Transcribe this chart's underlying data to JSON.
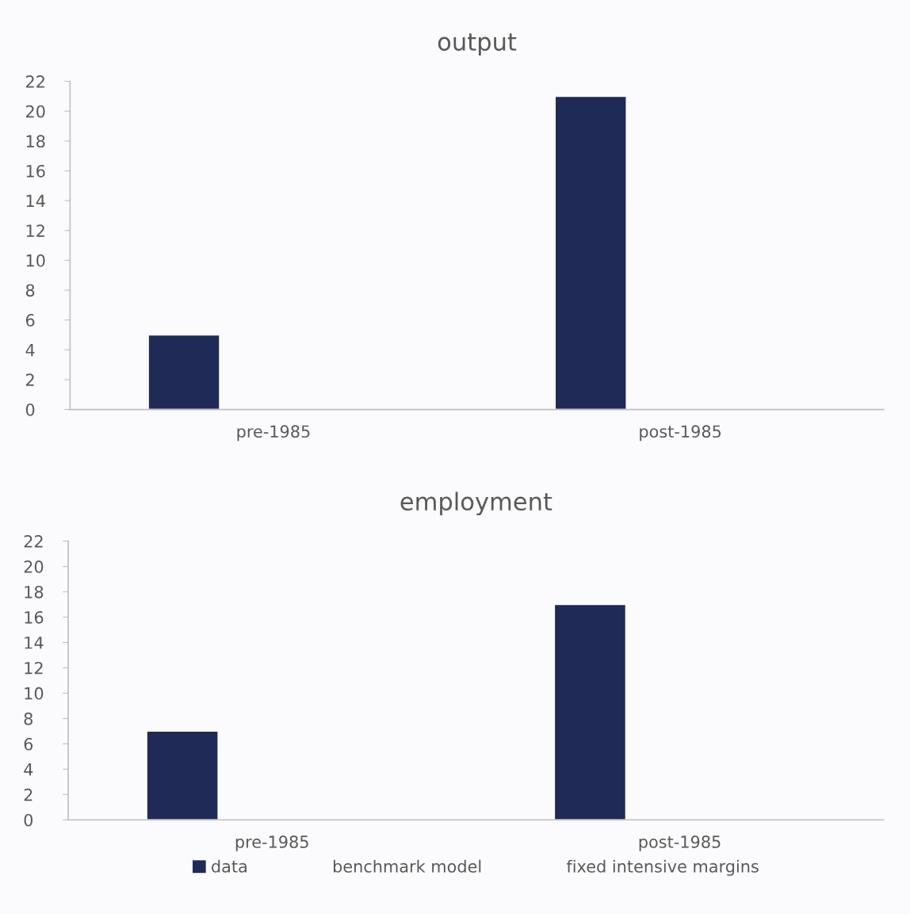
{
  "chart_data": [
    {
      "type": "bar",
      "title": "output",
      "categories": [
        "pre-1985",
        "post-1985"
      ],
      "series": [
        {
          "color": "#1f2a56",
          "values": [
            5,
            21
          ]
        },
        {
          "values": [
            null,
            null
          ]
        },
        {
          "values": [
            null,
            null
          ]
        }
      ],
      "ylim": [
        0,
        22
      ],
      "yticks": [
        0,
        2,
        4,
        6,
        8,
        10,
        12,
        14,
        16,
        18,
        20,
        22
      ],
      "grid": false,
      "legend": false
    },
    {
      "type": "bar",
      "title": "employment",
      "categories": [
        "pre-1985",
        "post-1985"
      ],
      "series": [
        {
          "name": "data",
          "color": "#1f2a56",
          "values": [
            7,
            17
          ]
        },
        {
          "name": "benchmark model",
          "values": [
            null,
            null
          ]
        },
        {
          "name": "fixed intensive margins",
          "values": [
            null,
            null
          ]
        }
      ],
      "ylim": [
        0,
        22
      ],
      "yticks": [
        0,
        2,
        4,
        6,
        8,
        10,
        12,
        14,
        16,
        18,
        20,
        22
      ],
      "grid": false,
      "legend": "bottom"
    }
  ]
}
